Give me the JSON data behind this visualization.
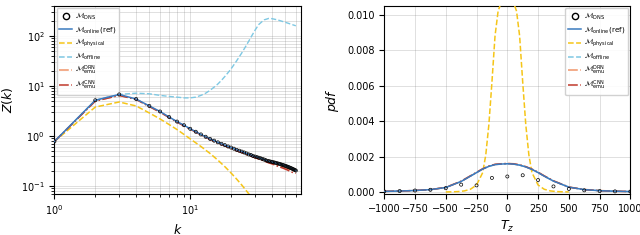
{
  "left": {
    "xlabel": "$k$",
    "ylabel": "$Z(k)$",
    "xlim": [
      1,
      65
    ],
    "ylim": [
      0.07,
      400
    ],
    "dns_x": [
      1,
      2,
      3,
      4,
      5,
      6,
      7,
      8,
      9,
      10,
      11,
      12,
      13,
      14,
      15,
      16,
      17,
      18,
      19,
      20,
      21,
      22,
      23,
      24,
      25,
      26,
      27,
      28,
      29,
      30,
      31,
      32,
      33,
      34,
      35,
      36,
      37,
      38,
      39,
      40,
      41,
      42,
      43,
      44,
      45,
      46,
      47,
      48,
      49,
      50,
      51,
      52,
      53,
      54,
      55,
      56,
      57,
      58,
      59,
      60
    ],
    "dns_y": [
      0.78,
      5.2,
      6.8,
      5.5,
      4.0,
      3.1,
      2.4,
      1.95,
      1.65,
      1.4,
      1.22,
      1.08,
      0.97,
      0.88,
      0.81,
      0.75,
      0.7,
      0.66,
      0.62,
      0.59,
      0.56,
      0.53,
      0.51,
      0.49,
      0.47,
      0.45,
      0.43,
      0.42,
      0.4,
      0.39,
      0.38,
      0.37,
      0.36,
      0.35,
      0.34,
      0.33,
      0.32,
      0.315,
      0.31,
      0.305,
      0.3,
      0.295,
      0.29,
      0.285,
      0.28,
      0.275,
      0.27,
      0.265,
      0.26,
      0.255,
      0.25,
      0.245,
      0.24,
      0.235,
      0.23,
      0.225,
      0.22,
      0.215,
      0.21,
      0.205
    ],
    "online_x": [
      1,
      2,
      3,
      4,
      5,
      6,
      7,
      8,
      9,
      10,
      11,
      12,
      13,
      14,
      15,
      16,
      17,
      18,
      19,
      20,
      21,
      22,
      23,
      24,
      25,
      26,
      27,
      28,
      29,
      30,
      31,
      32,
      33,
      34,
      35,
      36,
      37,
      38,
      39,
      40,
      41,
      42,
      43,
      44,
      45,
      46,
      47,
      48,
      49,
      50,
      51,
      52,
      53,
      54,
      55,
      56,
      57,
      58,
      59,
      60
    ],
    "online_y": [
      0.78,
      5.2,
      6.8,
      5.5,
      4.0,
      3.1,
      2.4,
      1.95,
      1.65,
      1.4,
      1.22,
      1.08,
      0.97,
      0.88,
      0.81,
      0.75,
      0.7,
      0.66,
      0.62,
      0.59,
      0.56,
      0.53,
      0.51,
      0.49,
      0.47,
      0.45,
      0.43,
      0.42,
      0.4,
      0.39,
      0.38,
      0.37,
      0.36,
      0.35,
      0.34,
      0.33,
      0.32,
      0.315,
      0.31,
      0.305,
      0.3,
      0.295,
      0.29,
      0.285,
      0.28,
      0.275,
      0.27,
      0.265,
      0.26,
      0.255,
      0.25,
      0.245,
      0.24,
      0.235,
      0.23,
      0.225,
      0.22,
      0.215,
      0.21,
      0.205
    ],
    "physical_x": [
      1,
      2,
      3,
      4,
      5,
      6,
      7,
      8,
      9,
      10,
      12,
      14,
      16,
      18,
      20,
      22,
      24,
      26,
      28,
      30,
      32,
      35,
      38,
      40,
      44,
      48,
      52,
      56,
      60
    ],
    "physical_y": [
      0.78,
      3.8,
      4.8,
      4.0,
      2.9,
      2.2,
      1.7,
      1.35,
      1.08,
      0.88,
      0.62,
      0.45,
      0.33,
      0.245,
      0.183,
      0.138,
      0.105,
      0.08,
      0.062,
      0.048,
      0.038,
      0.027,
      0.02,
      0.016,
      0.011,
      0.008,
      0.006,
      0.005,
      0.004
    ],
    "offline_x": [
      1,
      2,
      3,
      4,
      5,
      6,
      7,
      8,
      9,
      10,
      11,
      12,
      13,
      14,
      15,
      16,
      17,
      18,
      19,
      20,
      22,
      24,
      26,
      28,
      30,
      32,
      35,
      38,
      40,
      44,
      48,
      52,
      56,
      60
    ],
    "offline_y": [
      0.78,
      5.2,
      6.8,
      7.2,
      7.0,
      6.5,
      6.2,
      6.0,
      5.8,
      5.8,
      6.0,
      6.5,
      7.2,
      8.2,
      9.5,
      11.0,
      13.0,
      15.5,
      18.5,
      22.0,
      32.0,
      46.0,
      66.0,
      94.0,
      130.0,
      170.0,
      210.0,
      225.0,
      222.0,
      210.0,
      195.0,
      182.0,
      170.0,
      160.0
    ],
    "drn_x": [
      1,
      2,
      3,
      4,
      5,
      6,
      7,
      8,
      9,
      10,
      11,
      12,
      13,
      14,
      15,
      16,
      17,
      18,
      19,
      20,
      22,
      24,
      26,
      28,
      30,
      32,
      35,
      38,
      40,
      44,
      48,
      52,
      56,
      60
    ],
    "drn_y": [
      0.78,
      5.0,
      6.5,
      5.4,
      3.9,
      3.0,
      2.35,
      1.9,
      1.6,
      1.38,
      1.2,
      1.06,
      0.95,
      0.86,
      0.79,
      0.73,
      0.68,
      0.64,
      0.6,
      0.57,
      0.51,
      0.47,
      0.43,
      0.4,
      0.37,
      0.35,
      0.32,
      0.3,
      0.28,
      0.26,
      0.24,
      0.22,
      0.21,
      0.2
    ],
    "cnn_x": [
      1,
      2,
      3,
      4,
      5,
      6,
      7,
      8,
      9,
      10,
      11,
      12,
      13,
      14,
      15,
      16,
      17,
      18,
      19,
      20,
      22,
      24,
      26,
      28,
      30,
      32,
      35,
      38,
      40,
      44,
      48,
      52,
      56,
      60
    ],
    "cnn_y": [
      0.78,
      5.0,
      6.5,
      5.4,
      3.9,
      3.0,
      2.35,
      1.9,
      1.6,
      1.38,
      1.2,
      1.06,
      0.95,
      0.86,
      0.79,
      0.73,
      0.68,
      0.64,
      0.6,
      0.57,
      0.51,
      0.47,
      0.43,
      0.4,
      0.37,
      0.35,
      0.32,
      0.29,
      0.28,
      0.25,
      0.23,
      0.21,
      0.19,
      0.18
    ]
  },
  "right": {
    "xlabel": "$T_z$",
    "ylabel": "$pdf$",
    "xlim": [
      -1000,
      1000
    ],
    "ylim": [
      -0.0001,
      0.0105
    ],
    "yticks": [
      0.0,
      0.002,
      0.004,
      0.006,
      0.008,
      0.01
    ],
    "dns_x": [
      -1000,
      -875,
      -750,
      -625,
      -500,
      -375,
      -250,
      -125,
      0,
      125,
      250,
      375,
      500,
      625,
      750,
      875,
      1000
    ],
    "dns_y": [
      4e-05,
      6e-05,
      9e-05,
      0.00013,
      0.00022,
      0.00042,
      0.00038,
      0.0008,
      0.00088,
      0.00095,
      0.00068,
      0.00032,
      0.00018,
      0.0001,
      6e-05,
      4e-05,
      3e-05
    ],
    "online_x": [
      -1000,
      -875,
      -750,
      -625,
      -500,
      -375,
      -300,
      -250,
      -200,
      -150,
      -100,
      -50,
      0,
      50,
      100,
      150,
      200,
      250,
      300,
      375,
      500,
      625,
      750,
      875,
      1000
    ],
    "online_y": [
      4e-05,
      6e-05,
      9e-05,
      0.00014,
      0.00026,
      0.0006,
      0.0009,
      0.0011,
      0.0013,
      0.00145,
      0.00155,
      0.00158,
      0.0016,
      0.00158,
      0.00152,
      0.00142,
      0.00128,
      0.0011,
      0.0009,
      0.00062,
      0.00028,
      0.00014,
      8e-05,
      5e-05,
      3e-05
    ],
    "physical_x": [
      -500,
      -450,
      -400,
      -350,
      -300,
      -250,
      -200,
      -175,
      -150,
      -125,
      -100,
      -75,
      -50,
      -25,
      0,
      25,
      50,
      75,
      100,
      125,
      150,
      175,
      200,
      250,
      300,
      350,
      400,
      450,
      500
    ],
    "physical_y": [
      8e-06,
      1.5e-05,
      3e-05,
      6.5e-05,
      0.00016,
      0.0004,
      0.0011,
      0.0021,
      0.0038,
      0.0062,
      0.0088,
      0.0102,
      0.0107,
      0.0109,
      0.01095,
      0.0109,
      0.0107,
      0.0102,
      0.0088,
      0.0062,
      0.0038,
      0.0021,
      0.0011,
      0.0004,
      0.00016,
      6.5e-05,
      3e-05,
      1.5e-05,
      8e-06
    ],
    "offline_x": [
      -1000,
      -875,
      -750,
      -625,
      -500,
      -375,
      -300,
      -250,
      -200,
      -150,
      -100,
      -50,
      0,
      50,
      100,
      150,
      200,
      250,
      300,
      375,
      500,
      625,
      750,
      875,
      1000
    ],
    "offline_y": [
      4e-05,
      6e-05,
      9e-05,
      0.00014,
      0.00026,
      0.0006,
      0.0009,
      0.0011,
      0.0013,
      0.00145,
      0.00155,
      0.00158,
      0.0016,
      0.00158,
      0.00152,
      0.00142,
      0.00128,
      0.0011,
      0.0009,
      0.00062,
      0.00028,
      0.00014,
      8e-05,
      5e-05,
      3e-05
    ],
    "drn_x": [
      -1000,
      -875,
      -750,
      -625,
      -500,
      -375,
      -300,
      -250,
      -200,
      -150,
      -100,
      -50,
      0,
      50,
      100,
      150,
      200,
      250,
      300,
      375,
      500,
      625,
      750,
      875,
      1000
    ],
    "drn_y": [
      4e-05,
      6e-05,
      9e-05,
      0.00014,
      0.00027,
      0.00062,
      0.00092,
      0.00112,
      0.00132,
      0.00147,
      0.00157,
      0.0016,
      0.00162,
      0.0016,
      0.00154,
      0.00144,
      0.0013,
      0.00113,
      0.00092,
      0.00064,
      0.00029,
      0.00015,
      9e-05,
      5e-05,
      3e-05
    ],
    "cnn_x": [
      -1000,
      -875,
      -750,
      -625,
      -500,
      -375,
      -300,
      -250,
      -200,
      -150,
      -100,
      -50,
      0,
      50,
      100,
      150,
      200,
      250,
      300,
      375,
      500,
      625,
      750,
      875,
      1000
    ],
    "cnn_y": [
      4e-05,
      6e-05,
      9e-05,
      0.00014,
      0.00026,
      0.00061,
      0.00091,
      0.00111,
      0.00131,
      0.00146,
      0.00156,
      0.00159,
      0.00161,
      0.00159,
      0.00153,
      0.00143,
      0.00129,
      0.00111,
      0.00091,
      0.00063,
      0.00028,
      0.00014,
      8e-05,
      5e-05,
      3e-05
    ]
  },
  "colors": {
    "dns": "black",
    "online": "#3a7abf",
    "physical": "#f5c518",
    "offline": "#7ec8e3",
    "drn": "#f0956a",
    "cnn": "#c0392b"
  },
  "legend_labels": {
    "dns": "$\\mathcal{M}_{\\mathrm{DNS}}$",
    "online": "$\\mathcal{M}_{\\mathrm{online}}\\mathrm{(ref)}$",
    "physical": "$\\mathcal{M}_{\\mathrm{physical}}$",
    "offline": "$\\mathcal{M}_{\\mathrm{offline}}$",
    "drn": "$\\mathcal{M}_{\\mathrm{emu}}^{\\mathrm{DRN}}$",
    "cnn": "$\\mathcal{M}_{\\mathrm{emu}}^{\\mathrm{CNN}}$"
  }
}
